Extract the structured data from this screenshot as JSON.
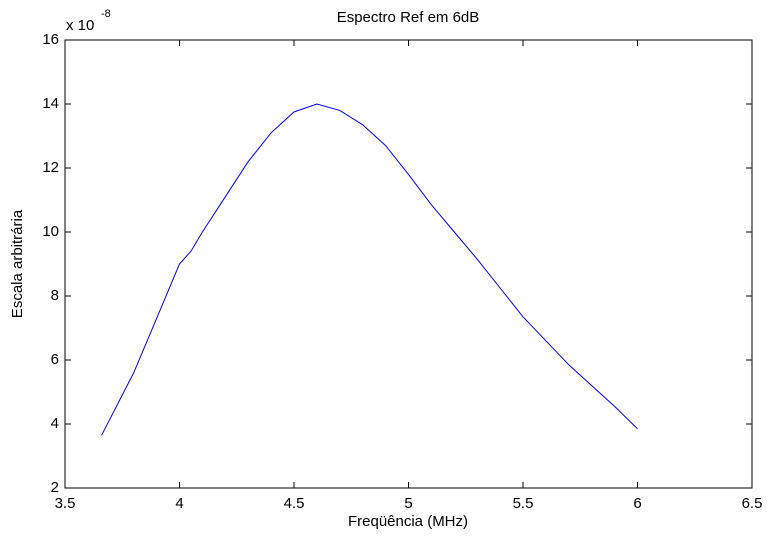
{
  "chart_data": {
    "type": "line",
    "title": "Espectro Ref em 6dB",
    "x_label": "Freqüência (MHz)",
    "y_label": "Escala arbitrária",
    "y_multiplier": "x 10",
    "y_multiplier_exponent": "-8",
    "x": [
      3.66,
      3.8,
      3.9,
      4.0,
      4.05,
      4.1,
      4.2,
      4.3,
      4.4,
      4.5,
      4.6,
      4.7,
      4.8,
      4.9,
      5.0,
      5.1,
      5.2,
      5.3,
      5.4,
      5.5,
      5.6,
      5.7,
      5.8,
      5.9,
      6.0
    ],
    "series": [
      {
        "color": "#0000ff",
        "values": [
          3.65,
          5.6,
          7.3,
          9.0,
          9.4,
          10.0,
          11.1,
          12.2,
          13.1,
          13.75,
          14.0,
          13.8,
          13.35,
          12.7,
          11.8,
          10.85,
          10.0,
          9.15,
          8.25,
          7.35,
          6.6,
          5.85,
          5.2,
          4.55,
          3.85
        ]
      }
    ],
    "xlim": [
      3.5,
      6.5
    ],
    "xticks": [
      3.5,
      4,
      4.5,
      5,
      5.5,
      6,
      6.5
    ],
    "ylim": [
      2,
      16
    ],
    "yticks": [
      2,
      4,
      6,
      8,
      10,
      12,
      14,
      16
    ]
  }
}
